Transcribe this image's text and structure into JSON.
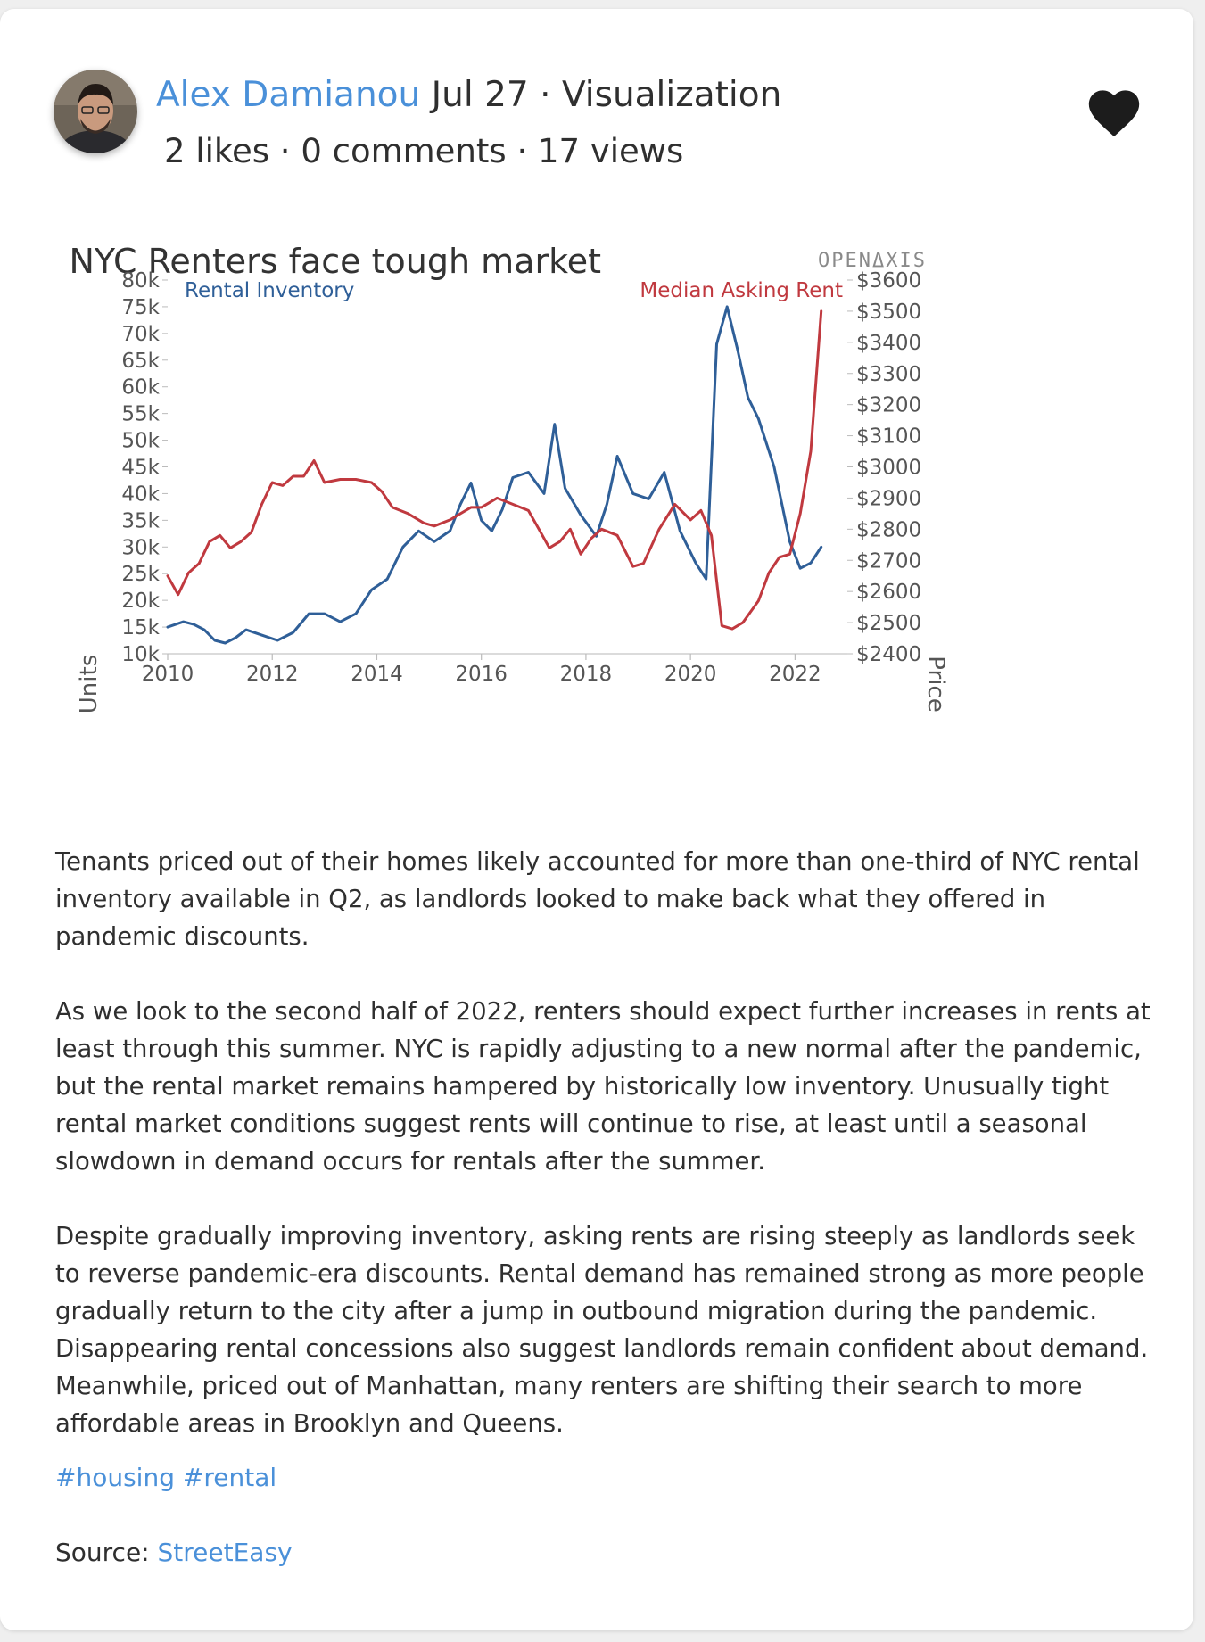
{
  "post": {
    "author": "Alex Damianou",
    "date": "Jul 27",
    "category": "Visualization",
    "separator": "·",
    "likes": "2 likes",
    "comments": "0 comments",
    "views": "17 views"
  },
  "icons": {
    "like": "heart-icon",
    "avatar": "user-avatar"
  },
  "colors": {
    "inventory": "#2f5f98",
    "rent": "#c0393f",
    "link": "#4a90d9"
  },
  "chart_data": {
    "type": "line",
    "title": "NYC Renters face tough market",
    "brand": "OPENΔXIS",
    "x_ticks": [
      "2010",
      "2012",
      "2014",
      "2016",
      "2018",
      "2020",
      "2022"
    ],
    "xlim": [
      2010,
      2023
    ],
    "y_left": {
      "label": "Units",
      "ticks": [
        "10k",
        "15k",
        "20k",
        "25k",
        "30k",
        "35k",
        "40k",
        "45k",
        "50k",
        "55k",
        "60k",
        "65k",
        "70k",
        "75k",
        "80k"
      ],
      "range": [
        10000,
        80000
      ]
    },
    "y_right": {
      "label": "Price",
      "ticks": [
        "$2400",
        "$2500",
        "$2600",
        "$2700",
        "$2800",
        "$2900",
        "$3000",
        "$3100",
        "$3200",
        "$3300",
        "$3400",
        "$3500",
        "$3600"
      ],
      "range": [
        2400,
        3600
      ]
    },
    "grid": false,
    "series": [
      {
        "name": "Rental Inventory",
        "axis": "left",
        "x": [
          2010.0,
          2010.3,
          2010.5,
          2010.7,
          2010.9,
          2011.1,
          2011.3,
          2011.5,
          2011.8,
          2012.1,
          2012.4,
          2012.7,
          2013.0,
          2013.3,
          2013.6,
          2013.9,
          2014.2,
          2014.5,
          2014.8,
          2015.1,
          2015.4,
          2015.6,
          2015.8,
          2016.0,
          2016.2,
          2016.4,
          2016.6,
          2016.9,
          2017.2,
          2017.4,
          2017.6,
          2017.9,
          2018.2,
          2018.4,
          2018.6,
          2018.9,
          2019.2,
          2019.5,
          2019.8,
          2020.1,
          2020.3,
          2020.5,
          2020.7,
          2020.9,
          2021.1,
          2021.3,
          2021.6,
          2021.9,
          2022.1,
          2022.3,
          2022.5
        ],
        "values": [
          15000,
          16000,
          15500,
          14500,
          12500,
          12000,
          13000,
          14500,
          13500,
          12500,
          14000,
          17500,
          17500,
          16000,
          17500,
          22000,
          24000,
          30000,
          33000,
          31000,
          33000,
          38000,
          42000,
          35000,
          33000,
          37000,
          43000,
          44000,
          40000,
          53000,
          41000,
          36000,
          32000,
          38000,
          47000,
          40000,
          39000,
          44000,
          33000,
          27000,
          24000,
          68000,
          75000,
          67000,
          58000,
          54000,
          45000,
          31000,
          26000,
          27000,
          30000
        ]
      },
      {
        "name": "Median Asking Rent",
        "axis": "right",
        "x": [
          2010.0,
          2010.2,
          2010.4,
          2010.6,
          2010.8,
          2011.0,
          2011.2,
          2011.4,
          2011.6,
          2011.8,
          2012.0,
          2012.2,
          2012.4,
          2012.6,
          2012.8,
          2013.0,
          2013.3,
          2013.6,
          2013.9,
          2014.1,
          2014.3,
          2014.6,
          2014.9,
          2015.1,
          2015.4,
          2015.6,
          2015.8,
          2016.0,
          2016.3,
          2016.6,
          2016.9,
          2017.1,
          2017.3,
          2017.5,
          2017.7,
          2017.9,
          2018.1,
          2018.3,
          2018.6,
          2018.9,
          2019.1,
          2019.4,
          2019.7,
          2020.0,
          2020.2,
          2020.4,
          2020.6,
          2020.8,
          2021.0,
          2021.3,
          2021.5,
          2021.7,
          2021.9,
          2022.1,
          2022.3,
          2022.5
        ],
        "values": [
          2650,
          2590,
          2660,
          2690,
          2760,
          2780,
          2740,
          2760,
          2790,
          2880,
          2950,
          2940,
          2970,
          2970,
          3020,
          2950,
          2960,
          2960,
          2950,
          2920,
          2870,
          2850,
          2820,
          2810,
          2830,
          2850,
          2870,
          2870,
          2900,
          2880,
          2860,
          2800,
          2740,
          2760,
          2800,
          2720,
          2770,
          2800,
          2780,
          2680,
          2690,
          2800,
          2880,
          2830,
          2860,
          2780,
          2490,
          2480,
          2500,
          2570,
          2660,
          2710,
          2720,
          2850,
          3050,
          3500
        ]
      }
    ]
  },
  "body": {
    "p1": "Tenants priced out of their homes likely accounted for more than one-third of NYC rental inventory available in Q2, as landlords looked to make back what they offered in pandemic discounts.",
    "p2": "As we look to the second half of 2022, renters should expect further increases in rents at least through this summer. NYC is rapidly adjusting to a new normal after the pandemic, but the rental market remains hampered by historically low inventory. Unusually tight rental market conditions suggest rents will continue to rise, at least until a seasonal slowdown in demand occurs for rentals after the summer.",
    "p3": "Despite gradually improving inventory, asking rents are rising steeply as landlords seek to reverse pandemic-era discounts. Rental demand has remained strong as more people gradually return to the city after a jump in outbound migration during the pandemic. Disappearing rental concessions also suggest landlords remain confident about demand. Meanwhile, priced out of Manhattan, many renters are shifting their search to more affordable areas in Brooklyn and Queens."
  },
  "tags": [
    "#housing",
    "#rental"
  ],
  "source": {
    "label": "Source:",
    "link": "StreetEasy"
  }
}
